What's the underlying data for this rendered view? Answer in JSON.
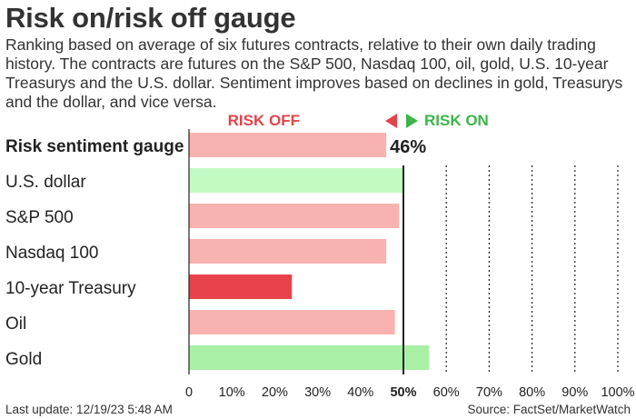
{
  "header": {
    "title": "Risk on/risk off gauge",
    "subtitle": "Ranking based on average of six futures contracts, relative to their own daily trading history. The contracts are futures on the S&P 500, Nasdaq 100, oil, gold, U.S. 10-year Treasurys and the U.S. dollar. Sentiment improves based on declines in gold, Treasurys and the dollar, and vice versa."
  },
  "legend": {
    "risk_off": "RISK OFF",
    "risk_on": "RISK ON",
    "risk_off_color": "#e34449",
    "risk_on_color": "#3cb54a"
  },
  "footer": {
    "last_update": "Last update: 12/19/23 5:48 AM",
    "source": "Source: FactSet/MarketWatch"
  },
  "chart_data": {
    "type": "bar",
    "orientation": "horizontal",
    "categories": [
      "Risk sentiment gauge",
      "U.S. dollar",
      "S&P 500",
      "Nasdaq 100",
      "10-year Treasury",
      "Oil",
      "Gold"
    ],
    "values": [
      46,
      50,
      49,
      46,
      24,
      48,
      56
    ],
    "colors": [
      "#f8b2b0",
      "#c2fbc2",
      "#f8b2b0",
      "#f8b2b0",
      "#e8434a",
      "#f8b2b0",
      "#a9f0a6"
    ],
    "bold_category": "Risk sentiment gauge",
    "value_label": "46%",
    "x_ticks": [
      "0",
      "10%",
      "20%",
      "30%",
      "40%",
      "50%",
      "60%",
      "70%",
      "80%",
      "90%",
      "100%"
    ],
    "xlim": [
      0,
      100
    ],
    "midline": 50,
    "grid": "dashed vertical lines above 50%"
  }
}
